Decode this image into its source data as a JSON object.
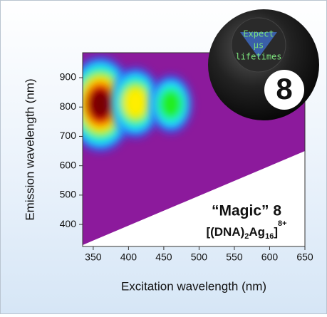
{
  "chart_data": {
    "type": "heatmap",
    "x_label": "Excitation wavelength (nm)",
    "y_label": "Emission wavelength (nm)",
    "xlim": [
      335,
      650
    ],
    "ylim": [
      325,
      985
    ],
    "xticks": [
      350,
      400,
      450,
      500,
      550,
      600,
      650
    ],
    "yticks": [
      400,
      500,
      600,
      700,
      800,
      900
    ],
    "background_color": "#8c1a9c",
    "colormap": [
      "#7a0000",
      "#ff1a00",
      "#ffee00",
      "#22ee22",
      "#22eeff",
      "#2255ff"
    ],
    "masked_below": {
      "x": [
        335,
        650
      ],
      "y": [
        330,
        650
      ]
    },
    "peaks": {
      "x": [
        360,
        410,
        460
      ],
      "y": [
        810,
        815,
        810
      ],
      "values": [
        1,
        0.6,
        0.45
      ]
    },
    "annotation": {
      "title": "“Magic” 8",
      "formula": [
        "[(DNA)",
        "2",
        "Ag",
        "16",
        "]",
        "8+"
      ]
    },
    "ball": {
      "lines": [
        "Expect",
        "μs",
        "lifetimes"
      ],
      "number": "8"
    }
  }
}
